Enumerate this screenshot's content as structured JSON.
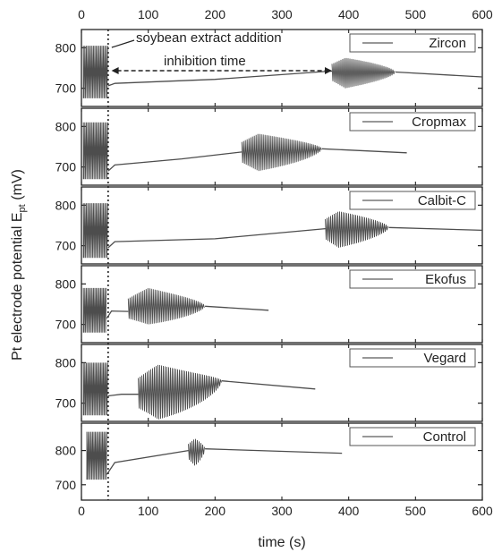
{
  "chart_data": {
    "type": "line",
    "xlabel": "time (s)",
    "ylabel": "Pt electrode potential E",
    "ylabel_subscript": "pt",
    "ylabel_unit": " (mV)",
    "xlim": [
      0,
      600
    ],
    "x_ticks": [
      0,
      100,
      200,
      300,
      400,
      500,
      600
    ],
    "y_ticks": [
      700,
      800
    ],
    "addition_time": 40,
    "annotations": {
      "addition": "soybean extract addition",
      "inhibition": "inhibition time",
      "inhibition_span": [
        45,
        375
      ]
    },
    "panels": [
      {
        "name": "Zircon",
        "ylim": [
          655,
          845
        ],
        "pre": {
          "start": 3,
          "end": 40,
          "low": 675,
          "high": 805
        },
        "post": [
          [
            40,
            706
          ],
          [
            50,
            712
          ],
          [
            200,
            722
          ],
          [
            370,
            742
          ],
          [
            375,
            742
          ]
        ],
        "burst": {
          "start": 375,
          "end": 470,
          "low": 700,
          "high": 775,
          "peak_at": 395
        },
        "tail": [
          [
            470,
            740
          ],
          [
            600,
            728
          ]
        ]
      },
      {
        "name": "Cropmax",
        "ylim": [
          655,
          845
        ],
        "pre": {
          "start": 3,
          "end": 40,
          "low": 670,
          "high": 810
        },
        "post": [
          [
            40,
            690
          ],
          [
            50,
            705
          ],
          [
            150,
            720
          ],
          [
            240,
            737
          ]
        ],
        "burst": {
          "start": 240,
          "end": 360,
          "low": 690,
          "high": 782,
          "peak_at": 265
        },
        "tail": [
          [
            360,
            745
          ],
          [
            487,
            735
          ]
        ]
      },
      {
        "name": "Calbit-C",
        "ylim": [
          655,
          845
        ],
        "pre": {
          "start": 3,
          "end": 40,
          "low": 670,
          "high": 805
        },
        "post": [
          [
            40,
            695
          ],
          [
            50,
            710
          ],
          [
            200,
            717
          ],
          [
            365,
            742
          ]
        ],
        "burst": {
          "start": 365,
          "end": 460,
          "low": 695,
          "high": 785,
          "peak_at": 385
        },
        "tail": [
          [
            460,
            745
          ],
          [
            600,
            738
          ]
        ]
      },
      {
        "name": "Ekofus",
        "ylim": [
          655,
          845
        ],
        "pre": {
          "start": 3,
          "end": 38,
          "low": 680,
          "high": 790
        },
        "post": [
          [
            38,
            715
          ],
          [
            45,
            733
          ],
          [
            70,
            732
          ]
        ],
        "burst": {
          "start": 70,
          "end": 185,
          "low": 700,
          "high": 790,
          "peak_at": 100
        },
        "tail": [
          [
            185,
            745
          ],
          [
            280,
            735
          ]
        ]
      },
      {
        "name": "Vegard",
        "ylim": [
          655,
          845
        ],
        "pre": {
          "start": 3,
          "end": 40,
          "low": 670,
          "high": 800
        },
        "post": [
          [
            40,
            718
          ],
          [
            60,
            722
          ],
          [
            85,
            722
          ]
        ],
        "burst": {
          "start": 85,
          "end": 210,
          "low": 660,
          "high": 795,
          "peak_at": 115
        },
        "tail": [
          [
            210,
            755
          ],
          [
            350,
            735
          ]
        ]
      },
      {
        "name": "Control",
        "ylim": [
          655,
          880
        ],
        "pre": {
          "start": 8,
          "end": 38,
          "low": 715,
          "high": 855
        },
        "post": [
          [
            38,
            730
          ],
          [
            50,
            765
          ],
          [
            160,
            800
          ]
        ],
        "burst": {
          "start": 160,
          "end": 185,
          "low": 755,
          "high": 835,
          "peak_at": 170
        },
        "tail": [
          [
            185,
            805
          ],
          [
            390,
            792
          ]
        ]
      }
    ]
  },
  "colors": {
    "trace": "#4d4d4d",
    "axis": "#222222",
    "background": "#ffffff",
    "legend_line": "#777777"
  }
}
